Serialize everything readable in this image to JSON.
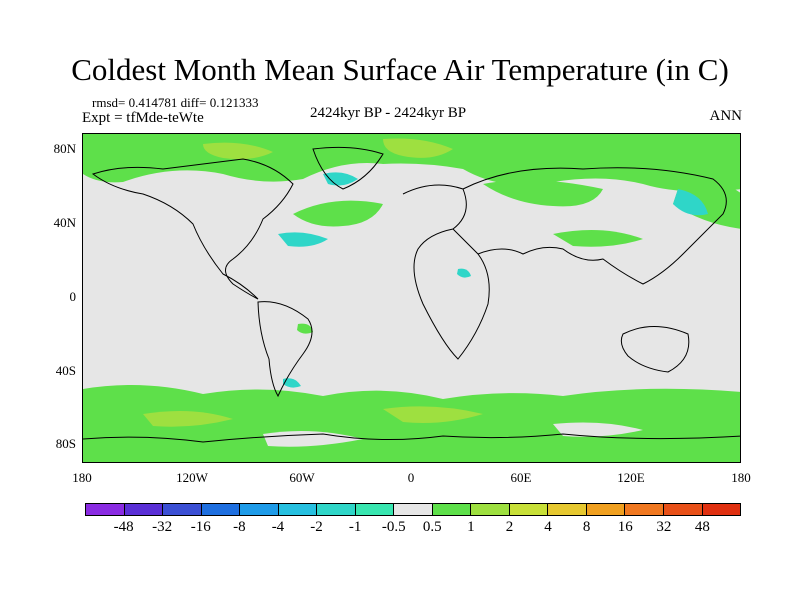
{
  "title": "Coldest Month Mean Surface Air Temperature (in C)",
  "stats": "rmsd= 0.414781 diff= 0.121333",
  "experiment": "Expt = tfMde-teWte",
  "period": "2424kyr BP - 2424kyr BP",
  "season": "ANN",
  "lat_labels": [
    "80N",
    "40N",
    "0",
    "40S",
    "80S"
  ],
  "lon_labels": [
    "180",
    "120W",
    "60W",
    "0",
    "60E",
    "120E",
    "180"
  ],
  "colorbar": {
    "colors": [
      "#8a2be2",
      "#5a2fd6",
      "#3b4fd4",
      "#1e6fe0",
      "#1e9be8",
      "#27c0e0",
      "#2fd6c8",
      "#38e6b0",
      "#e6e6e6",
      "#5ee04a",
      "#9ee040",
      "#c8e038",
      "#e6c830",
      "#f0a020",
      "#f07820",
      "#e85018",
      "#e03010"
    ],
    "labels": [
      "-48",
      "-32",
      "-16",
      "-8",
      "-4",
      "-2",
      "-1",
      "-0.5",
      "0.5",
      "1",
      "2",
      "4",
      "8",
      "16",
      "32",
      "48"
    ]
  }
}
